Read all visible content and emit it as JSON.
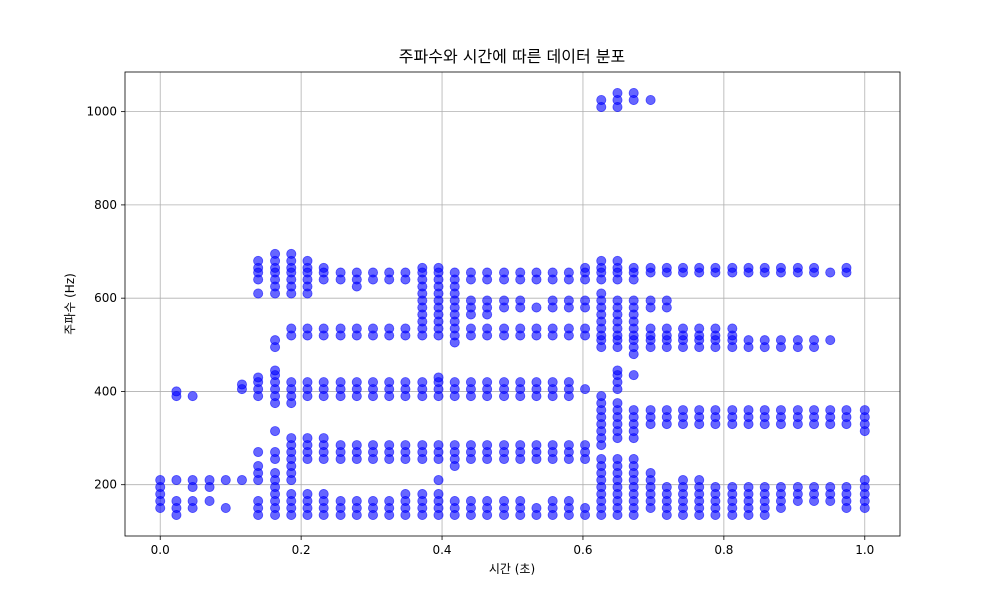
{
  "chart_data": {
    "type": "scatter",
    "title": "주파수와 시간에 따른 데이터 분포",
    "xlabel": "시간 (초)",
    "ylabel": "주파수 (Hz)",
    "xlim": [
      -0.05,
      1.05
    ],
    "ylim": [
      90,
      1085
    ],
    "x_ticks": [
      0.0,
      0.2,
      0.4,
      0.6,
      0.8,
      1.0
    ],
    "x_tick_labels": [
      "0.0",
      "0.2",
      "0.4",
      "0.6",
      "0.8",
      "1.0"
    ],
    "y_ticks": [
      200,
      400,
      600,
      800,
      1000
    ],
    "y_tick_labels": [
      "200",
      "400",
      "600",
      "800",
      "1000"
    ],
    "grid": true,
    "marker_color": "#0000ff",
    "marker_alpha": 0.6,
    "columns": [
      {
        "x": 0.0,
        "y": [
          150,
          165,
          180,
          195,
          210
        ]
      },
      {
        "x": 0.023,
        "y": [
          135,
          150,
          165,
          210,
          390,
          400
        ]
      },
      {
        "x": 0.046,
        "y": [
          150,
          165,
          195,
          210,
          390
        ]
      },
      {
        "x": 0.07,
        "y": [
          165,
          195,
          210
        ]
      },
      {
        "x": 0.093,
        "y": [
          150,
          210
        ]
      },
      {
        "x": 0.116,
        "y": [
          210,
          405,
          415
        ]
      },
      {
        "x": 0.139,
        "y": [
          135,
          150,
          165,
          210,
          225,
          240,
          270,
          390,
          405,
          420,
          430,
          610,
          640,
          655,
          665,
          680
        ]
      },
      {
        "x": 0.163,
        "y": [
          135,
          150,
          165,
          180,
          195,
          210,
          225,
          255,
          270,
          315,
          375,
          390,
          405,
          420,
          435,
          445,
          495,
          510,
          610,
          625,
          640,
          655,
          665,
          680,
          695
        ]
      },
      {
        "x": 0.186,
        "y": [
          135,
          150,
          165,
          180,
          210,
          225,
          240,
          255,
          270,
          285,
          300,
          375,
          390,
          405,
          420,
          520,
          535,
          610,
          625,
          640,
          655,
          665,
          680,
          695
        ]
      },
      {
        "x": 0.209,
        "y": [
          135,
          150,
          165,
          180,
          255,
          270,
          285,
          300,
          390,
          405,
          420,
          520,
          535,
          610,
          625,
          640,
          655,
          665,
          680
        ]
      },
      {
        "x": 0.232,
        "y": [
          135,
          150,
          165,
          180,
          255,
          270,
          285,
          300,
          390,
          405,
          420,
          520,
          535,
          640,
          655,
          665
        ]
      },
      {
        "x": 0.256,
        "y": [
          135,
          150,
          165,
          255,
          270,
          285,
          390,
          405,
          420,
          520,
          535,
          640,
          655
        ]
      },
      {
        "x": 0.279,
        "y": [
          135,
          150,
          165,
          255,
          270,
          285,
          390,
          405,
          420,
          520,
          535,
          625,
          640,
          655
        ]
      },
      {
        "x": 0.302,
        "y": [
          135,
          150,
          165,
          255,
          270,
          285,
          390,
          405,
          420,
          520,
          535,
          640,
          655
        ]
      },
      {
        "x": 0.325,
        "y": [
          135,
          150,
          165,
          255,
          270,
          285,
          390,
          405,
          420,
          520,
          535,
          640,
          655
        ]
      },
      {
        "x": 0.348,
        "y": [
          135,
          150,
          165,
          180,
          255,
          270,
          285,
          390,
          405,
          420,
          520,
          535,
          640,
          655
        ]
      },
      {
        "x": 0.372,
        "y": [
          135,
          150,
          165,
          180,
          255,
          270,
          285,
          390,
          405,
          420,
          520,
          535,
          550,
          565,
          580,
          595,
          610,
          625,
          640,
          655,
          665
        ]
      },
      {
        "x": 0.395,
        "y": [
          135,
          150,
          165,
          180,
          210,
          255,
          270,
          285,
          390,
          405,
          420,
          430,
          520,
          535,
          550,
          565,
          580,
          595,
          610,
          625,
          640,
          655,
          665
        ]
      },
      {
        "x": 0.418,
        "y": [
          135,
          150,
          165,
          240,
          255,
          270,
          285,
          390,
          405,
          420,
          505,
          520,
          535,
          550,
          565,
          580,
          595,
          610,
          625,
          640,
          655
        ]
      },
      {
        "x": 0.441,
        "y": [
          135,
          150,
          165,
          255,
          270,
          285,
          390,
          405,
          420,
          520,
          535,
          565,
          580,
          595,
          640,
          655
        ]
      },
      {
        "x": 0.464,
        "y": [
          135,
          150,
          165,
          255,
          270,
          285,
          390,
          405,
          420,
          520,
          535,
          565,
          580,
          595,
          640,
          655
        ]
      },
      {
        "x": 0.488,
        "y": [
          135,
          150,
          165,
          255,
          270,
          285,
          390,
          405,
          420,
          520,
          535,
          580,
          595,
          640,
          655
        ]
      },
      {
        "x": 0.511,
        "y": [
          135,
          150,
          165,
          255,
          270,
          285,
          390,
          405,
          420,
          520,
          535,
          580,
          595,
          640,
          655
        ]
      },
      {
        "x": 0.534,
        "y": [
          135,
          150,
          255,
          270,
          285,
          390,
          405,
          420,
          520,
          535,
          580,
          640,
          655
        ]
      },
      {
        "x": 0.557,
        "y": [
          135,
          150,
          165,
          255,
          270,
          285,
          390,
          405,
          420,
          520,
          535,
          580,
          595,
          640,
          655
        ]
      },
      {
        "x": 0.58,
        "y": [
          135,
          150,
          165,
          255,
          270,
          285,
          390,
          405,
          420,
          520,
          535,
          580,
          595,
          640,
          655
        ]
      },
      {
        "x": 0.603,
        "y": [
          135,
          150,
          255,
          270,
          285,
          405,
          520,
          535,
          580,
          595,
          640,
          655,
          665
        ]
      },
      {
        "x": 0.626,
        "y": [
          135,
          150,
          165,
          180,
          195,
          210,
          225,
          240,
          255,
          285,
          300,
          315,
          330,
          345,
          360,
          375,
          390,
          495,
          510,
          520,
          535,
          550,
          565,
          580,
          595,
          610,
          640,
          655,
          665,
          680,
          1010,
          1025
        ]
      },
      {
        "x": 0.649,
        "y": [
          135,
          150,
          165,
          180,
          195,
          210,
          225,
          240,
          255,
          300,
          315,
          330,
          345,
          360,
          375,
          405,
          420,
          435,
          445,
          495,
          510,
          520,
          535,
          550,
          565,
          580,
          595,
          640,
          655,
          665,
          680,
          1010,
          1025,
          1040
        ]
      },
      {
        "x": 0.672,
        "y": [
          135,
          150,
          165,
          180,
          195,
          210,
          225,
          240,
          255,
          300,
          315,
          330,
          345,
          360,
          435,
          480,
          495,
          510,
          520,
          535,
          550,
          565,
          580,
          595,
          640,
          655,
          665,
          1025,
          1040
        ]
      },
      {
        "x": 0.696,
        "y": [
          150,
          165,
          180,
          195,
          210,
          225,
          330,
          345,
          360,
          495,
          510,
          520,
          535,
          580,
          595,
          655,
          665,
          1025
        ]
      },
      {
        "x": 0.719,
        "y": [
          135,
          150,
          165,
          180,
          195,
          330,
          345,
          360,
          495,
          510,
          520,
          535,
          580,
          595,
          655,
          665
        ]
      },
      {
        "x": 0.742,
        "y": [
          135,
          150,
          165,
          180,
          195,
          210,
          330,
          345,
          360,
          495,
          510,
          520,
          535,
          655,
          665
        ]
      },
      {
        "x": 0.765,
        "y": [
          135,
          150,
          165,
          180,
          195,
          210,
          330,
          345,
          360,
          495,
          510,
          520,
          535,
          655,
          665
        ]
      },
      {
        "x": 0.788,
        "y": [
          135,
          150,
          165,
          180,
          195,
          330,
          345,
          360,
          495,
          510,
          520,
          535,
          655,
          665
        ]
      },
      {
        "x": 0.812,
        "y": [
          135,
          150,
          165,
          180,
          195,
          330,
          345,
          360,
          495,
          510,
          520,
          535,
          655,
          665
        ]
      },
      {
        "x": 0.835,
        "y": [
          135,
          150,
          165,
          180,
          195,
          330,
          345,
          360,
          495,
          510,
          655,
          665
        ]
      },
      {
        "x": 0.858,
        "y": [
          135,
          150,
          165,
          180,
          195,
          330,
          345,
          360,
          495,
          510,
          655,
          665
        ]
      },
      {
        "x": 0.881,
        "y": [
          150,
          165,
          180,
          195,
          330,
          345,
          360,
          495,
          510,
          655,
          665
        ]
      },
      {
        "x": 0.905,
        "y": [
          165,
          180,
          195,
          330,
          345,
          360,
          495,
          510,
          655,
          665
        ]
      },
      {
        "x": 0.928,
        "y": [
          165,
          180,
          195,
          330,
          345,
          360,
          495,
          510,
          655,
          665
        ]
      },
      {
        "x": 0.951,
        "y": [
          165,
          180,
          195,
          330,
          345,
          360,
          510,
          655
        ]
      },
      {
        "x": 0.974,
        "y": [
          150,
          165,
          180,
          195,
          330,
          345,
          360,
          655,
          665
        ]
      },
      {
        "x": 1.0,
        "y": [
          150,
          165,
          180,
          195,
          210,
          315,
          330,
          345,
          360
        ]
      }
    ]
  }
}
